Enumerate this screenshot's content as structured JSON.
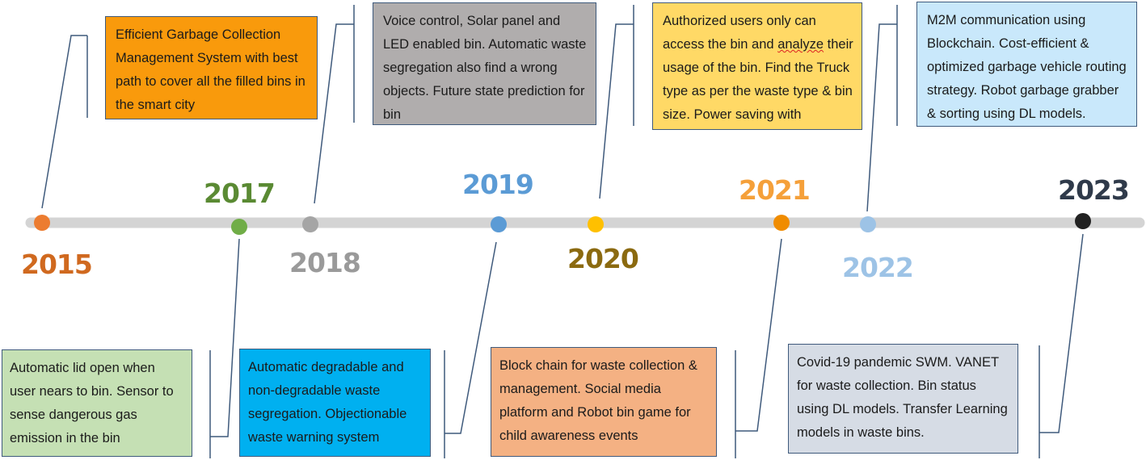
{
  "colors": {
    "axis": "#d4d4d4",
    "connector": "#3f5a7c",
    "y2015": "#d0691f",
    "y2017": "#5a8a33",
    "y2018": "#9a9a9a",
    "y2019": "#5b9bd5",
    "y2020": "#8b6a10",
    "y2021": "#f5a03a",
    "y2022": "#9dc3e6",
    "y2023": "#2f3a4a"
  },
  "years": [
    {
      "id": "2015",
      "label": "2015",
      "color": "#d0691f",
      "dot": "#ec7c30"
    },
    {
      "id": "2017",
      "label": "2017",
      "color": "#5a8a33",
      "dot": "#70ad47"
    },
    {
      "id": "2018",
      "label": "2018",
      "color": "#9a9a9a",
      "dot": "#a5a5a5"
    },
    {
      "id": "2019",
      "label": "2019",
      "color": "#5b9bd5",
      "dot": "#5b9bd5"
    },
    {
      "id": "2020",
      "label": "2020",
      "color": "#8b6a10",
      "dot": "#ffc000"
    },
    {
      "id": "2021",
      "label": "2021",
      "color": "#f5a03a",
      "dot": "#f08c00"
    },
    {
      "id": "2022",
      "label": "2022",
      "color": "#9dc3e6",
      "dot": "#9dc3e6"
    },
    {
      "id": "2023",
      "label": "2023",
      "color": "#2f3a4a",
      "dot": "#222222"
    }
  ],
  "events": {
    "e2015": {
      "text": "Efficient Garbage Collection Management System with best path to cover all the filled bins in the smart city",
      "bg": "#f99a0c"
    },
    "e2017": {
      "text": "Automatic lid open when user nears to bin. Sensor to sense dangerous gas emission in the bin",
      "bg": "#c5e0b4"
    },
    "e2018": {
      "text": "Voice control, Solar panel and LED enabled bin. Automatic waste segregation also find a wrong objects. Future state prediction for bin",
      "bg": "#b0adad"
    },
    "e2019": {
      "text": "Automatic degradable and non-degradable waste segregation. Objectionable waste warning system",
      "bg": "#00b0f0"
    },
    "e2020": {
      "text": "Authorized users only can access the bin and analyze their usage of the bin. Find the Truck type as per the waste type & bin size. Power saving with LoRaWAN.",
      "bg": "#ffd966"
    },
    "e2021": {
      "text": "Block chain for waste collection & management. Social media platform and Robot bin game for child awareness events",
      "bg": "#f4b183"
    },
    "e2022": {
      "text": "M2M communication using Blockchain. Cost-efficient & optimized garbage vehicle routing strategy. Robot garbage grabber & sorting using DL models.",
      "bg": "#c9e8fb"
    },
    "e2023": {
      "text": "Covid-19 pandemic SWM. VANET for waste collection. Bin status using DL models. Transfer Learning models in waste bins.",
      "bg": "#d6dce5"
    }
  }
}
